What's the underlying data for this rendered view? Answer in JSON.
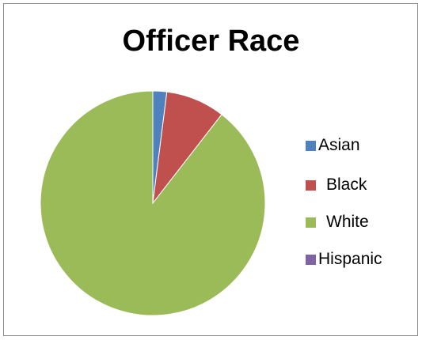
{
  "chart_data": {
    "type": "pie",
    "title": "Officer Race",
    "categories": [
      "Asian",
      "Black",
      "White",
      "Hispanic"
    ],
    "values": [
      2,
      8.5,
      89.5,
      0
    ],
    "colors": [
      "#4f81bd",
      "#c0504d",
      "#9bbb59",
      "#8064a2"
    ],
    "legend_position": "right",
    "start_angle_deg": 0,
    "direction": "clockwise"
  },
  "legend": {
    "items": [
      {
        "label": "Asian",
        "color": "#4f81bd"
      },
      {
        "label": "Black",
        "color": "#c0504d"
      },
      {
        "label": "White",
        "color": "#9bbb59"
      },
      {
        "label": "Hispanic",
        "color": "#8064a2"
      }
    ]
  }
}
